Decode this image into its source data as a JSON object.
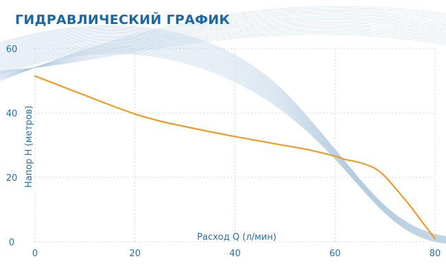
{
  "chart_data": {
    "type": "line",
    "title": "ГИДРАВЛИЧЕСКИЙ ГРАФИК",
    "xlabel": "Расход Q (л/мин)",
    "ylabel": "Напор H (метров)",
    "xlim": [
      0,
      80
    ],
    "ylim": [
      0,
      60
    ],
    "x_ticks": [
      "0",
      "20",
      "40",
      "60",
      "80"
    ],
    "y_ticks": [
      "0",
      "20",
      "40",
      "60"
    ],
    "grid": true,
    "series": [
      {
        "color": "#f39a1e",
        "x": [
          0,
          5,
          10,
          15,
          20,
          25,
          30,
          35,
          40,
          45,
          50,
          55,
          60,
          62,
          65,
          68,
          70,
          72,
          75,
          78,
          80
        ],
        "y": [
          51.5,
          48.5,
          45.5,
          42.5,
          39.7,
          37.5,
          35.8,
          34.2,
          32.7,
          31.3,
          29.9,
          28.5,
          26.6,
          25.6,
          24.6,
          22.8,
          20.3,
          16.8,
          11.2,
          5.0,
          1.0
        ]
      }
    ]
  }
}
